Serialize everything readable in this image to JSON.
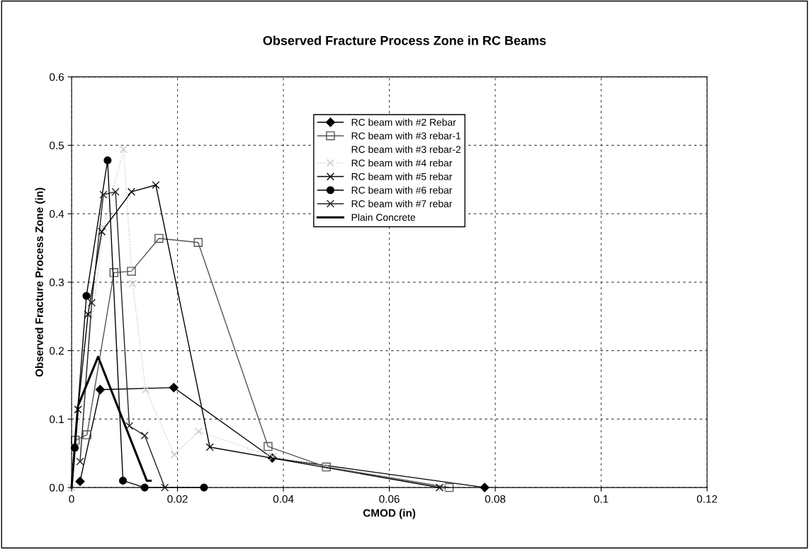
{
  "chart_data": {
    "type": "line",
    "title": "Observed Fracture Process Zone in RC Beams",
    "xlabel": "CMOD (in)",
    "ylabel": "Observed Fracture Process Zone (in)",
    "xlim": [
      0,
      0.12
    ],
    "xticks": [
      0,
      0.02,
      0.04,
      0.06,
      0.08,
      0.1,
      0.12
    ],
    "ylim": [
      0,
      0.6
    ],
    "yticks": [
      {
        "value": 0,
        "label": "0.0"
      },
      {
        "value": 0.1,
        "label": "0.1"
      },
      {
        "value": 0.2,
        "label": "0.2"
      },
      {
        "value": 0.3,
        "label": "0.3"
      },
      {
        "value": 0.4,
        "label": "0.4"
      },
      {
        "value": 0.5,
        "label": "0.5"
      },
      {
        "value": 0.6,
        "label": "0.6"
      }
    ],
    "grid": true,
    "legend": "top center",
    "series": [
      {
        "name": "RC beam with #2 Rebar",
        "color": "#000000",
        "marker": "diamond",
        "line_style": "solid",
        "x": [
          0.0016,
          0.0054,
          0.0193,
          0.0379,
          0.078
        ],
        "values": [
          0.009,
          0.143,
          0.146,
          0.043,
          0
        ]
      },
      {
        "name": "RC beam with #3 rebar-1",
        "color": "#555555",
        "marker": "square",
        "line_style": "solid",
        "x": [
          0.0007,
          0.0029,
          0.008,
          0.0113,
          0.0165,
          0.0239,
          0.0371,
          0.0481,
          0.0713
        ],
        "values": [
          0.069,
          0.077,
          0.314,
          0.316,
          0.364,
          0.358,
          0.06,
          0.03,
          0
        ]
      },
      {
        "name": "RC beam with #3 rebar-2"
      },
      {
        "name": "RC beam with #4 rebar",
        "color": "#c8c8c8",
        "marker": "cross",
        "line_style": "dotted",
        "x": [
          0,
          0.006,
          0.0098,
          0.0115,
          0.014,
          0.0194,
          0.024,
          0.038,
          0.048,
          0.07
        ],
        "values": [
          0,
          0.38,
          0.494,
          0.298,
          0.143,
          0.048,
          0.082,
          0.045,
          0.03,
          0
        ]
      },
      {
        "name": "RC beam with #5 rebar",
        "color": "#000000",
        "marker": "cross",
        "line_style": "solid",
        "x": [
          0.0012,
          0.0031,
          0.0057,
          0.0113,
          0.0159,
          0.0261,
          0.0695
        ],
        "values": [
          0.114,
          0.253,
          0.374,
          0.432,
          0.442,
          0.059,
          0
        ]
      },
      {
        "name": "RC beam with #6 rebar",
        "color": "#000000",
        "marker": "circle",
        "line_style": "solid",
        "x": [
          0.0006,
          0.0028,
          0.0068,
          0.0097,
          0.0138,
          0.025
        ],
        "values": [
          0.058,
          0.28,
          0.478,
          0.01,
          0,
          0
        ]
      },
      {
        "name": "RC beam with #7 rebar",
        "color": "#222222",
        "marker": "cross",
        "line_style": "solid",
        "x": [
          0.0016,
          0.0038,
          0.006,
          0.0083,
          0.0109,
          0.0138,
          0.0176
        ],
        "values": [
          0.038,
          0.27,
          0.428,
          0.432,
          0.09,
          0.076,
          0
        ]
      },
      {
        "name": "Plain Concrete",
        "color": "#000000",
        "marker": "none",
        "line_style": "solid",
        "x": [
          0,
          0.0012,
          0.005,
          0.0142,
          0.0149
        ],
        "values": [
          0,
          0.119,
          0.191,
          0.01,
          0.01
        ]
      }
    ]
  }
}
